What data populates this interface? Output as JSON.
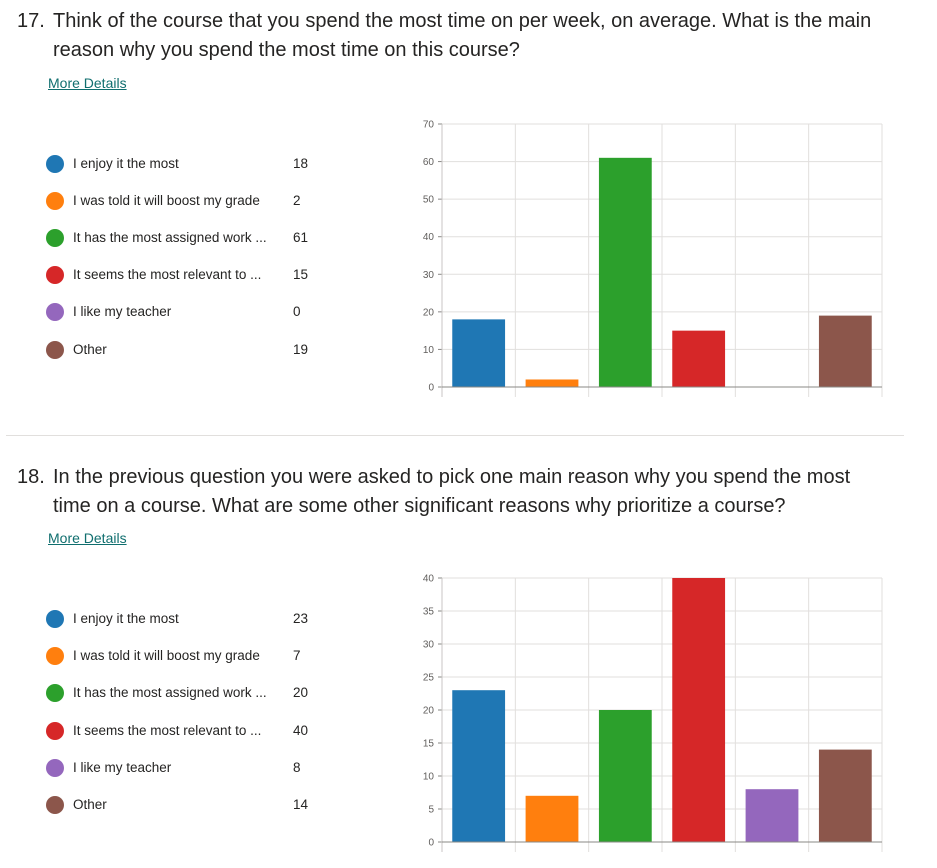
{
  "questions": [
    {
      "number": "17.",
      "text": "Think of the course that you spend the most time on per week, on average. What is the main reason why you spend the most time on this course?",
      "more_details": "More Details",
      "legend": [
        {
          "label": "I enjoy it the most",
          "count": "18"
        },
        {
          "label": "I was told it will boost my grade",
          "count": "2"
        },
        {
          "label": "It has the most assigned work ...",
          "count": "61"
        },
        {
          "label": "It seems the most relevant to ...",
          "count": "15"
        },
        {
          "label": "I like my teacher",
          "count": "0"
        },
        {
          "label": "Other",
          "count": "19"
        }
      ]
    },
    {
      "number": "18.",
      "text": "In the previous question you were asked to pick one main reason why you spend the most time on a course. What are some other significant reasons why prioritize a course?",
      "more_details": "More Details",
      "legend": [
        {
          "label": "I enjoy it the most",
          "count": "23"
        },
        {
          "label": "I was told it will boost my grade",
          "count": "7"
        },
        {
          "label": "It has the most assigned work ...",
          "count": "20"
        },
        {
          "label": "It seems the most relevant to ...",
          "count": "40"
        },
        {
          "label": "I like my teacher",
          "count": "8"
        },
        {
          "label": "Other",
          "count": "14"
        }
      ]
    }
  ],
  "colors": [
    "#1f77b4",
    "#ff7f0e",
    "#2ca02c",
    "#d62728",
    "#9467bd",
    "#8c564b"
  ],
  "chart_data": [
    {
      "type": "bar",
      "categories": [
        "I enjoy it the most",
        "I was told it will boost my grade",
        "It has the most assigned work ...",
        "It seems the most relevant to ...",
        "I like my teacher",
        "Other"
      ],
      "values": [
        18,
        2,
        61,
        15,
        0,
        19
      ],
      "ylim": [
        0,
        70
      ],
      "yticks": [
        "0",
        "10",
        "20",
        "30",
        "40",
        "50",
        "60",
        "70"
      ],
      "grid": true
    },
    {
      "type": "bar",
      "categories": [
        "I enjoy it the most",
        "I was told it will boost my grade",
        "It has the most assigned work ...",
        "It seems the most relevant to ...",
        "I like my teacher",
        "Other"
      ],
      "values": [
        23,
        7,
        20,
        40,
        8,
        14
      ],
      "ylim": [
        0,
        40
      ],
      "yticks": [
        "0",
        "5",
        "10",
        "15",
        "20",
        "25",
        "30",
        "35",
        "40"
      ],
      "grid": true
    }
  ]
}
